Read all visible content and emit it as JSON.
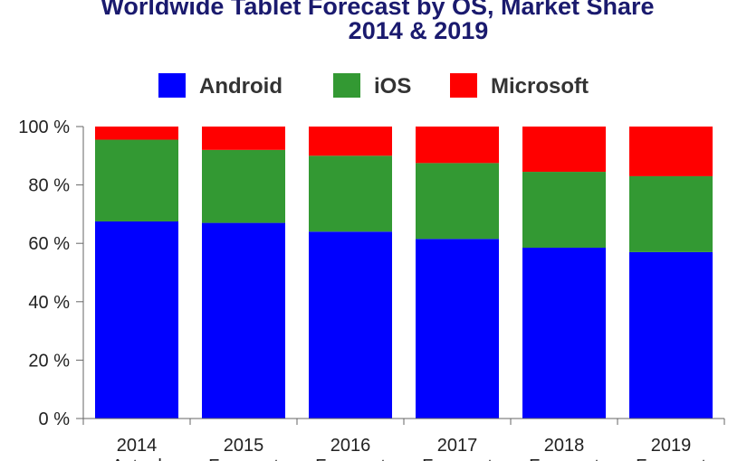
{
  "chart_data": {
    "type": "bar",
    "stacked": true,
    "title": "Worldwide Tablet Forecast by OS, Market Share",
    "subtitle": "2014 & 2019",
    "categories": [
      "2014",
      "2015",
      "2016",
      "2017",
      "2018",
      "2019"
    ],
    "category_sublabels": [
      "Actual",
      "Forecast",
      "Forecast",
      "Forecast",
      "Forecast",
      "Forecast"
    ],
    "series": [
      {
        "name": "Android",
        "color": "#0000ff",
        "values": [
          67.5,
          67,
          64,
          61.5,
          58.5,
          57
        ]
      },
      {
        "name": "iOS",
        "color": "#339933",
        "values": [
          28,
          25,
          26,
          26,
          26,
          26
        ]
      },
      {
        "name": "Microsoft",
        "color": "#ff0000",
        "values": [
          4.5,
          8,
          10,
          12.5,
          15.5,
          17
        ]
      }
    ],
    "yticks": [
      "0 %",
      "20 %",
      "40 %",
      "60 %",
      "80 %",
      "100 %"
    ],
    "ylim": [
      0,
      100
    ],
    "legend_position": "top",
    "grid": false
  }
}
